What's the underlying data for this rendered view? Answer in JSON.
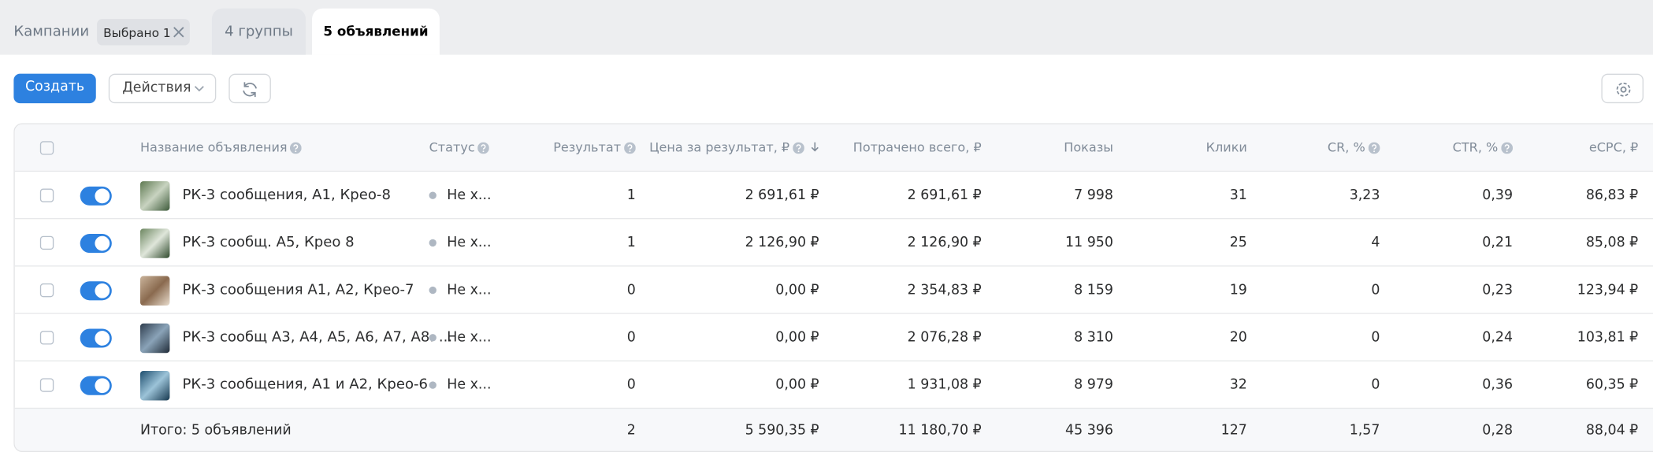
{
  "tabs": {
    "campaigns": "Кампании",
    "selected_chip": "Выбрано 1",
    "groups": "4 группы",
    "ads": "5 объявлений"
  },
  "toolbar": {
    "create": "Создать",
    "actions": "Действия"
  },
  "table": {
    "columns": [
      "Название объявления",
      "Статус",
      "Результат",
      "Цена за результат, ₽",
      "Потрачено всего, ₽",
      "Показы",
      "Клики",
      "CR, %",
      "CTR, %",
      "eCPC, ₽"
    ],
    "rows": [
      [
        "РК-3 сообщения, А1, Крео-8",
        "Не х...",
        "1",
        "2 691,61 ₽",
        "2 691,61 ₽",
        "7 998",
        "31",
        "3,23",
        "0,39",
        "86,83 ₽"
      ],
      [
        "РК-3 сообщ. А5, Крео 8",
        "Не х...",
        "1",
        "2 126,90 ₽",
        "2 126,90 ₽",
        "11 950",
        "25",
        "4",
        "0,21",
        "85,08 ₽"
      ],
      [
        "РК-3 сообщения А1, А2, Крео-7",
        "Не х...",
        "0",
        "0,00 ₽",
        "2 354,83 ₽",
        "8 159",
        "19",
        "0",
        "0,23",
        "123,94 ₽"
      ],
      [
        "РК-3 сообщ А3, А4, А5, А6, А7, А8. ...",
        "Не х...",
        "0",
        "0,00 ₽",
        "2 076,28 ₽",
        "8 310",
        "20",
        "0",
        "0,24",
        "103,81 ₽"
      ],
      [
        "РК-3 сообщения, А1 и А2, Крео-6",
        "Не х...",
        "0",
        "0,00 ₽",
        "1 931,08 ₽",
        "8 979",
        "32",
        "0",
        "0,36",
        "60,35 ₽"
      ]
    ],
    "total": [
      "Итого: 5 объявлений",
      "2",
      "5 590,35 ₽",
      "11 180,70 ₽",
      "45 396",
      "127",
      "1,57",
      "0,28",
      "88,04 ₽"
    ]
  }
}
